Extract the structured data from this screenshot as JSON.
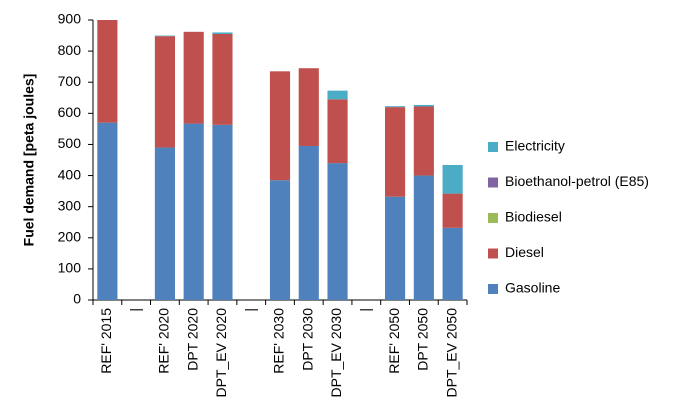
{
  "chart_data": {
    "type": "bar",
    "stacked": true,
    "y_label": "Fuel demand [peta joules]",
    "categories": [
      "REF' 2015",
      "|",
      "REF' 2020",
      "DPT 2020",
      "DPT_EV 2020",
      "|",
      "REF' 2030",
      "DPT 2030",
      "DPT_EV 2030",
      "|",
      "REF' 2050",
      "DPT 2050",
      "DPT_EV 2050"
    ],
    "series": [
      {
        "name": "Gasoline",
        "color": "#4f81bd",
        "values": [
          570,
          null,
          490,
          567,
          563,
          null,
          385,
          495,
          440,
          null,
          332,
          400,
          232
        ]
      },
      {
        "name": "Diesel",
        "color": "#c0504d",
        "values": [
          330,
          null,
          358,
          295,
          292,
          null,
          350,
          250,
          205,
          null,
          288,
          222,
          110
        ]
      },
      {
        "name": "Biodiesel",
        "color": "#9bbb59",
        "values": [
          0,
          null,
          0,
          0,
          0,
          null,
          0,
          0,
          0,
          null,
          0,
          0,
          0
        ]
      },
      {
        "name": "Bioethanol-petrol (E85)",
        "color": "#8064a2",
        "values": [
          0,
          null,
          0,
          0,
          0,
          null,
          0,
          0,
          0,
          null,
          0,
          0,
          0
        ]
      },
      {
        "name": "Electricity",
        "color": "#4bacc6",
        "values": [
          0,
          null,
          2,
          0,
          5,
          null,
          0,
          0,
          28,
          null,
          3,
          5,
          92
        ]
      }
    ],
    "ylim": [
      0,
      900
    ],
    "yticks": [
      0,
      100,
      200,
      300,
      400,
      500,
      600,
      700,
      800,
      900
    ],
    "grid": false,
    "legend": "right"
  }
}
